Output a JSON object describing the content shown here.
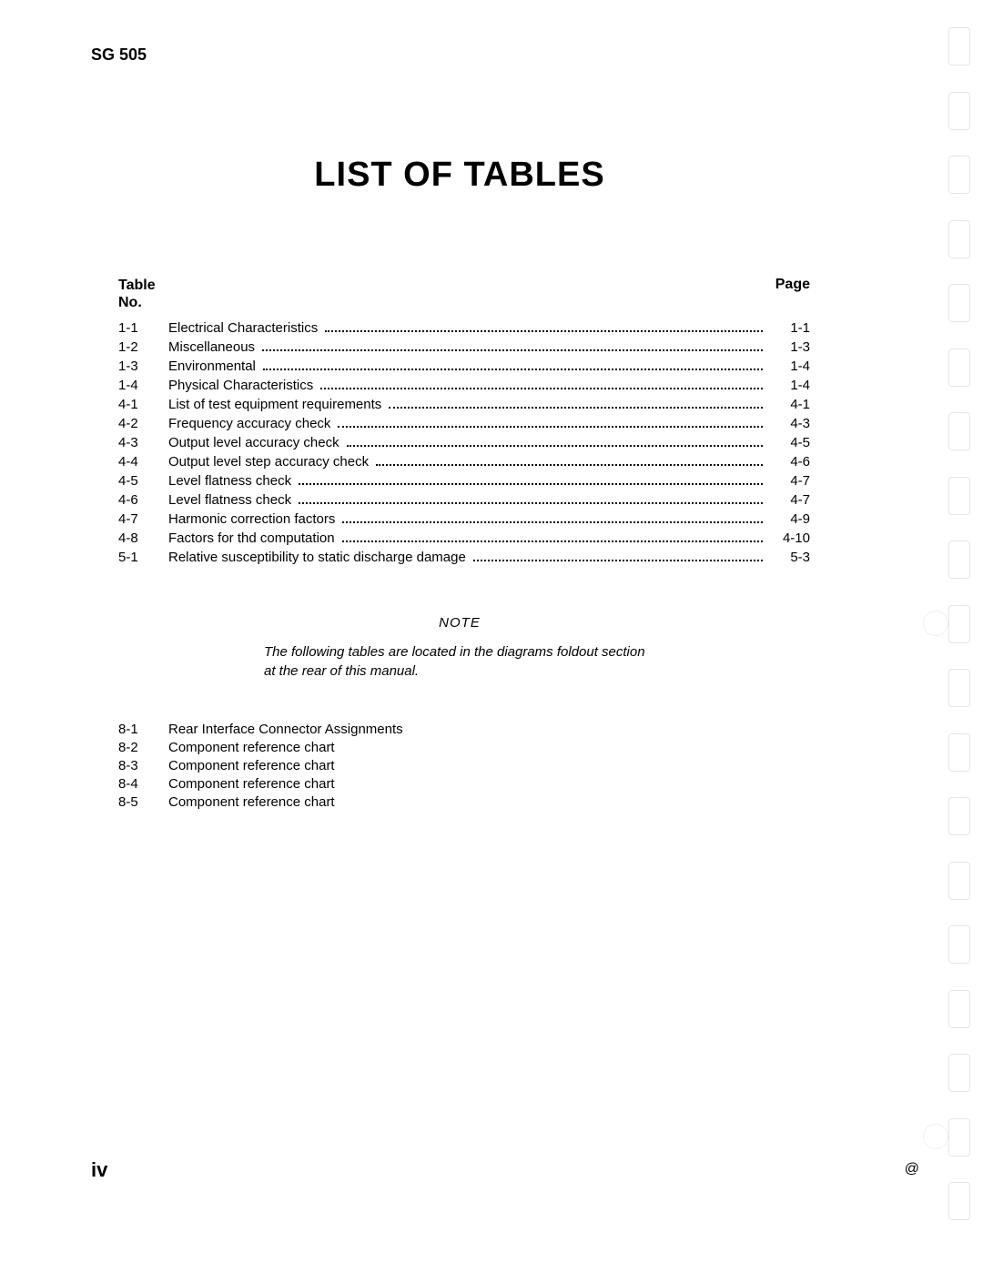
{
  "document": {
    "header_code": "SG 505",
    "title": "LIST OF TABLES",
    "page_roman": "iv",
    "at_symbol": "@",
    "background_color": "#ffffff",
    "text_color": "#000000",
    "title_fontsize_pt": 28,
    "body_fontsize_pt": 11
  },
  "toc": {
    "header_left_line1": "Table",
    "header_left_line2": "No.",
    "header_right": "Page",
    "rows": [
      {
        "no": "1-1",
        "title": "Electrical Characteristics",
        "page": "1-1"
      },
      {
        "no": "1-2",
        "title": "Miscellaneous",
        "page": "1-3"
      },
      {
        "no": "1-3",
        "title": "Environmental",
        "page": "1-4"
      },
      {
        "no": "1-4",
        "title": "Physical Characteristics",
        "page": "1-4"
      },
      {
        "no": "4-1",
        "title": "List of test equipment requirements",
        "page": "4-1"
      },
      {
        "no": "4-2",
        "title": "Frequency accuracy check",
        "page": "4-3"
      },
      {
        "no": "4-3",
        "title": "Output level accuracy check",
        "page": "4-5"
      },
      {
        "no": "4-4",
        "title": "Output level step accuracy check",
        "page": "4-6"
      },
      {
        "no": "4-5",
        "title": "Level flatness check",
        "page": "4-7"
      },
      {
        "no": "4-6",
        "title": "Level flatness check",
        "page": "4-7"
      },
      {
        "no": "4-7",
        "title": "Harmonic correction factors",
        "page": "4-9"
      },
      {
        "no": "4-8",
        "title": "Factors for thd computation",
        "page": "4-10"
      },
      {
        "no": "5-1",
        "title": "Relative susceptibility to static discharge damage",
        "page": "5-3"
      }
    ]
  },
  "note": {
    "label": "NOTE",
    "text": "The following tables are located in the diagrams foldout section at the rear of this manual."
  },
  "foldout": {
    "rows": [
      {
        "no": "8-1",
        "title": "Rear Interface Connector Assignments"
      },
      {
        "no": "8-2",
        "title": "Component reference chart"
      },
      {
        "no": "8-3",
        "title": "Component reference chart"
      },
      {
        "no": "8-4",
        "title": "Component reference chart"
      },
      {
        "no": "8-5",
        "title": "Component reference chart"
      }
    ]
  },
  "binding": {
    "punch_count": 19,
    "ring_indices": [
      9,
      17
    ],
    "punch_color": "#cfcfcf",
    "ring_color": "#dcdcdc"
  }
}
